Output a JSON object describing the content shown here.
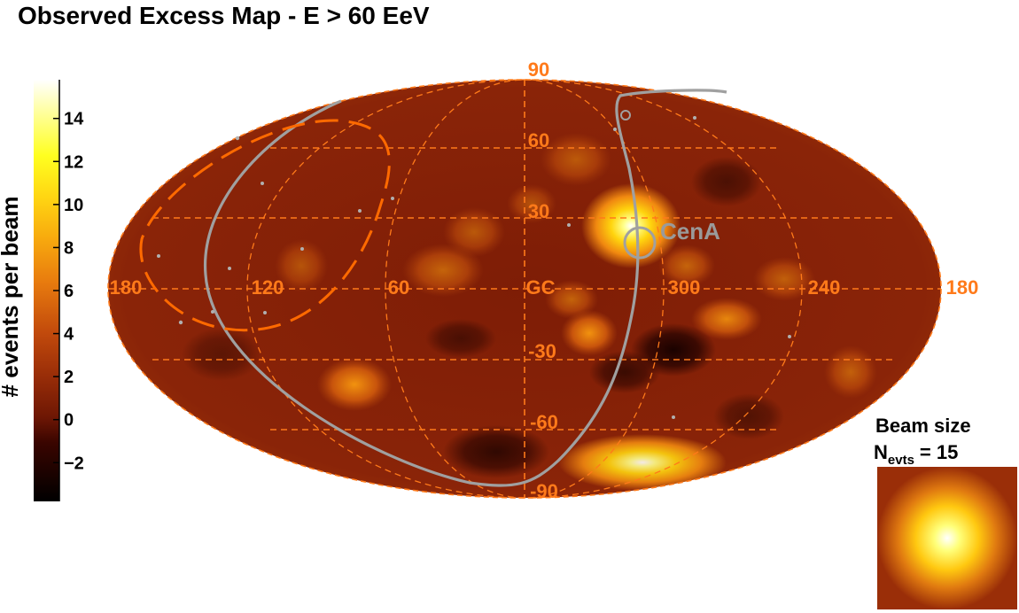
{
  "title": "Observed Excess Map - E > 60 EeV",
  "colorbar": {
    "label": "# events per beam",
    "ticks": [
      "14",
      "12",
      "10",
      "8",
      "6",
      "4",
      "2",
      "0",
      "−2"
    ],
    "tick_values": [
      14,
      12,
      10,
      8,
      6,
      4,
      2,
      0,
      -2
    ],
    "range": [
      -3.8,
      15.8
    ]
  },
  "map": {
    "projection": "Aitoff-Hammer (galactic)",
    "longitude_labels": [
      "180",
      "120",
      "60",
      "GC",
      "300",
      "240",
      "180"
    ],
    "latitude_labels": [
      "90",
      "60",
      "30",
      "-30",
      "-60",
      "-90"
    ],
    "source_label": "CenA"
  },
  "beam": {
    "title": "Beam size",
    "n_label": "N",
    "n_sub": "evts",
    "n_value": "= 15"
  },
  "colors": {
    "grid": "#ff7a1a",
    "contour": "#a0a0a0",
    "dashed_region": "#ff6a00"
  }
}
